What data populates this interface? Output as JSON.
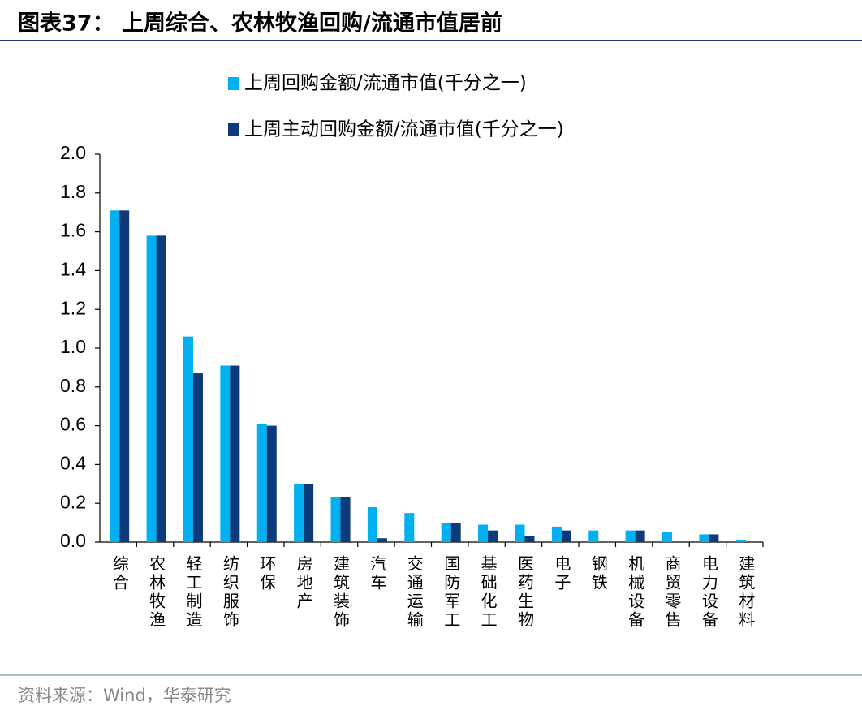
{
  "chart_data": {
    "type": "bar",
    "title": "图表37： 上周综合、农林牧渔回购/流通市值居前",
    "source": "资料来源：Wind，华泰研究",
    "categories": [
      "综合",
      "农林牧渔",
      "轻工制造",
      "纺织服饰",
      "环保",
      "房地产",
      "建筑装饰",
      "汽车",
      "交通运输",
      "国防军工",
      "基础化工",
      "医药生物",
      "电子",
      "钢铁",
      "机械设备",
      "商贸零售",
      "电力设备",
      "建筑材料"
    ],
    "series": [
      {
        "name": "上周回购金额/流通市值(千分之一)",
        "color": "#00b0f0",
        "values": [
          1.71,
          1.58,
          1.06,
          0.91,
          0.61,
          0.3,
          0.23,
          0.18,
          0.15,
          0.1,
          0.09,
          0.09,
          0.08,
          0.06,
          0.06,
          0.05,
          0.04,
          0.01
        ]
      },
      {
        "name": "上周主动回购金额/流通市值(千分之一)",
        "color": "#0d3a7a",
        "values": [
          1.71,
          1.58,
          0.87,
          0.91,
          0.6,
          0.3,
          0.23,
          0.02,
          0,
          0.1,
          0.06,
          0.03,
          0.06,
          0,
          0.06,
          0,
          0.04,
          0
        ]
      }
    ],
    "ylim": [
      0,
      2
    ],
    "yticks": [
      {
        "value": 0,
        "label": "0.0"
      },
      0.2,
      0.4,
      0.6,
      0.8,
      {
        "value": 1,
        "label": "1.0"
      },
      1.2,
      1.4,
      1.6,
      1.8,
      {
        "value": 2,
        "label": "2.0"
      }
    ]
  }
}
